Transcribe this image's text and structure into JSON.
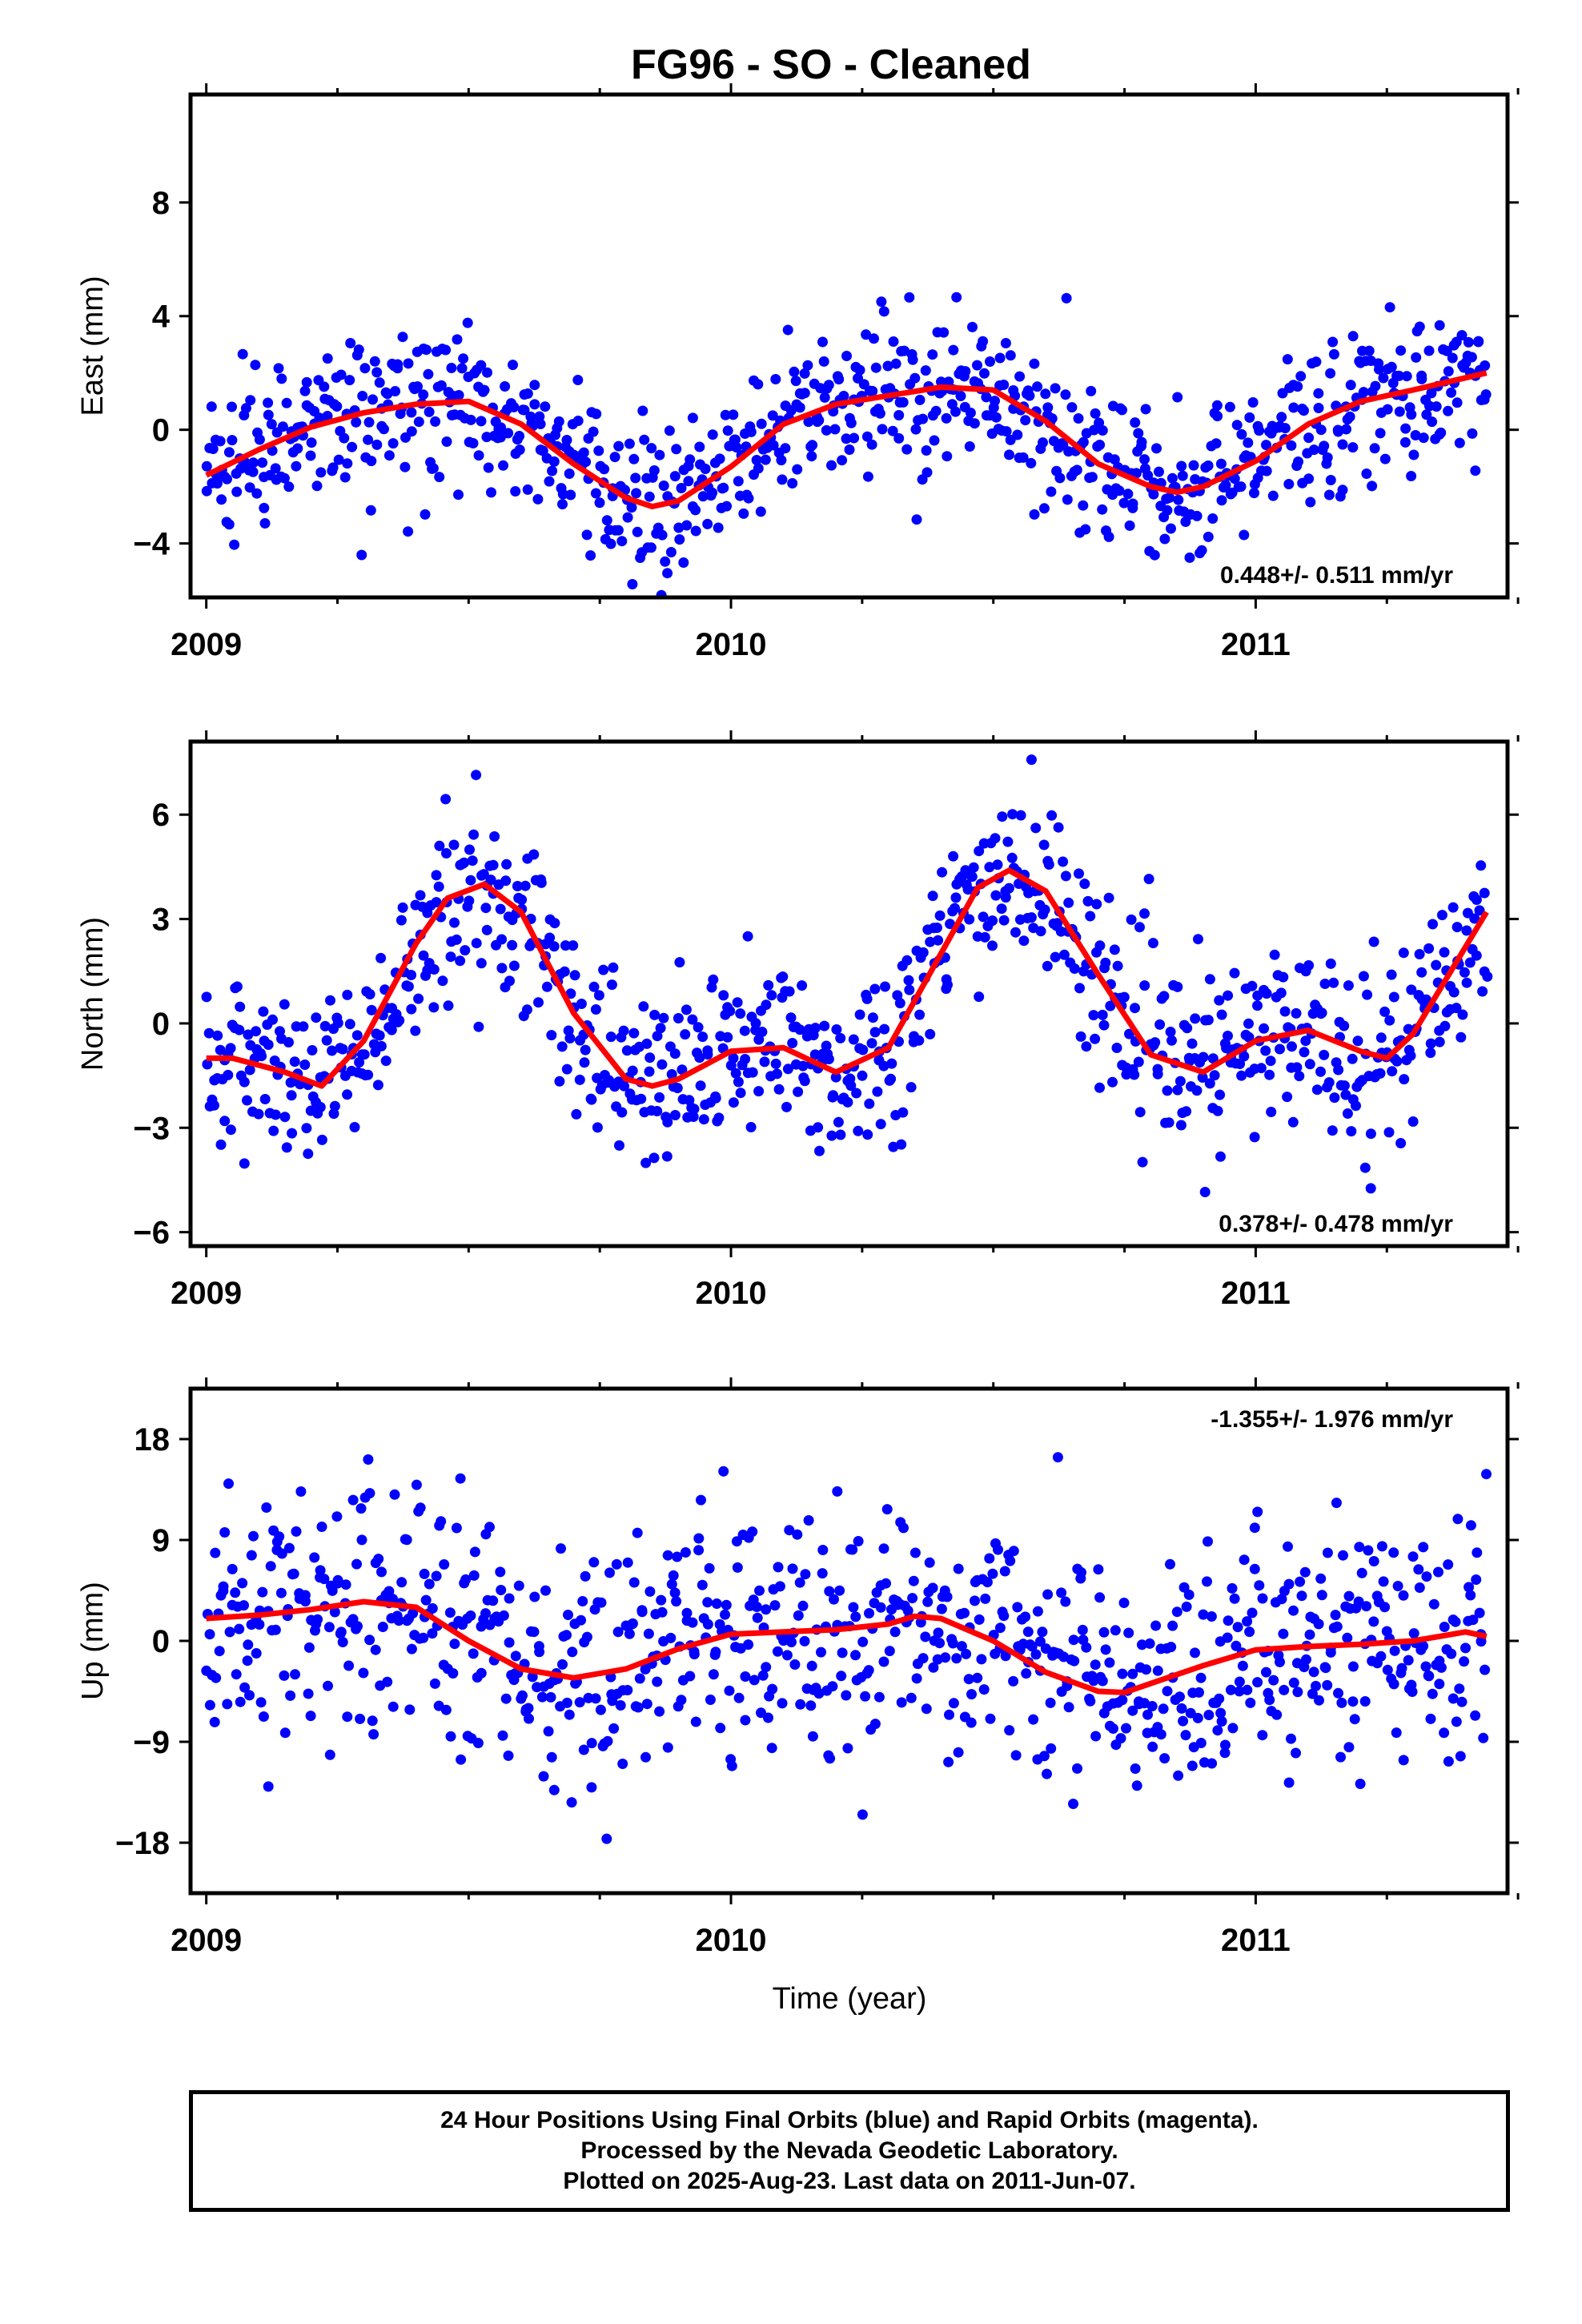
{
  "figure": {
    "title": "FG96  - SO - Cleaned",
    "xlabel": "Time (year)"
  },
  "footer": {
    "lines": [
      "24 Hour Positions Using Final Orbits (blue) and Rapid Orbits (magenta).",
      "Processed by the Nevada Geodetic Laboratory.",
      "Plotted on 2025-Aug-23. Last data on 2011-Jun-07."
    ]
  },
  "colors": {
    "final_orbits": "#0000ff",
    "fit": "#ff0000",
    "axes": "#000000"
  },
  "chart_data": [
    {
      "type": "scatter",
      "ylabel": "East (mm)",
      "xlim": [
        2008.97,
        2011.48
      ],
      "ylim": [
        -5.9,
        11.8
      ],
      "x_ticks": [
        2009,
        2010,
        2011
      ],
      "y_ticks": [
        -4,
        0,
        4,
        8
      ],
      "rate_text": "0.448+/- 0.511 mm/yr",
      "rate_position": "bottom-right",
      "fit": {
        "x": [
          2009.0,
          2009.1,
          2009.2,
          2009.3,
          2009.4,
          2009.5,
          2009.6,
          2009.7,
          2009.8,
          2009.85,
          2009.9,
          2010.0,
          2010.1,
          2010.2,
          2010.3,
          2010.4,
          2010.5,
          2010.6,
          2010.7,
          2010.8,
          2010.85,
          2010.9,
          2011.0,
          2011.1,
          2011.2,
          2011.3,
          2011.44
        ],
        "y": [
          -1.6,
          -0.7,
          0.1,
          0.6,
          0.9,
          1.0,
          0.2,
          -1.2,
          -2.4,
          -2.7,
          -2.5,
          -1.3,
          0.2,
          0.9,
          1.2,
          1.5,
          1.4,
          0.3,
          -1.2,
          -2.0,
          -2.2,
          -2.0,
          -1.1,
          0.2,
          1.0,
          1.4,
          2.0
        ]
      }
    },
    {
      "type": "scatter",
      "ylabel": "North (mm)",
      "xlim": [
        2008.97,
        2011.48
      ],
      "ylim": [
        -6.4,
        8.1
      ],
      "x_ticks": [
        2009,
        2010,
        2011
      ],
      "y_ticks": [
        -6,
        -3,
        0,
        3,
        6
      ],
      "rate_text": "0.378+/- 0.478 mm/yr",
      "rate_position": "bottom-right",
      "fit": {
        "x": [
          2009.0,
          2009.05,
          2009.15,
          2009.22,
          2009.3,
          2009.4,
          2009.46,
          2009.53,
          2009.6,
          2009.7,
          2009.8,
          2009.85,
          2009.9,
          2010.0,
          2010.1,
          2010.2,
          2010.3,
          2010.4,
          2010.47,
          2010.53,
          2010.6,
          2010.7,
          2010.8,
          2010.9,
          2011.0,
          2011.1,
          2011.2,
          2011.25,
          2011.3,
          2011.44
        ],
        "y": [
          -1.0,
          -1.0,
          -1.4,
          -1.8,
          -0.5,
          2.3,
          3.6,
          4.0,
          3.2,
          0.3,
          -1.6,
          -1.8,
          -1.6,
          -0.8,
          -0.7,
          -1.4,
          -0.7,
          2.0,
          3.9,
          4.4,
          3.8,
          1.4,
          -0.9,
          -1.4,
          -0.5,
          -0.2,
          -0.8,
          -1.0,
          -0.3,
          3.2
        ]
      }
    },
    {
      "type": "scatter",
      "ylabel": "Up (mm)",
      "xlim": [
        2008.97,
        2011.48
      ],
      "ylim": [
        -22.5,
        22.5
      ],
      "x_ticks": [
        2009,
        2010,
        2011
      ],
      "y_ticks": [
        -18,
        -9,
        0,
        9,
        18
      ],
      "rate_text": "-1.355+/- 1.976 mm/yr",
      "rate_position": "top-right",
      "fit": {
        "x": [
          2009.0,
          2009.1,
          2009.2,
          2009.3,
          2009.4,
          2009.5,
          2009.6,
          2009.7,
          2009.8,
          2009.9,
          2010.0,
          2010.1,
          2010.2,
          2010.3,
          2010.35,
          2010.4,
          2010.5,
          2010.6,
          2010.7,
          2010.75,
          2010.8,
          2010.9,
          2011.0,
          2011.1,
          2011.2,
          2011.3,
          2011.4,
          2011.44
        ],
        "y": [
          2.0,
          2.3,
          2.8,
          3.5,
          3.0,
          0.0,
          -2.5,
          -3.3,
          -2.5,
          -0.7,
          0.6,
          0.8,
          1.0,
          1.5,
          2.2,
          2.0,
          0.0,
          -2.8,
          -4.5,
          -4.6,
          -3.8,
          -2.2,
          -0.8,
          -0.5,
          -0.3,
          0.0,
          0.8,
          0.4
        ]
      }
    }
  ]
}
